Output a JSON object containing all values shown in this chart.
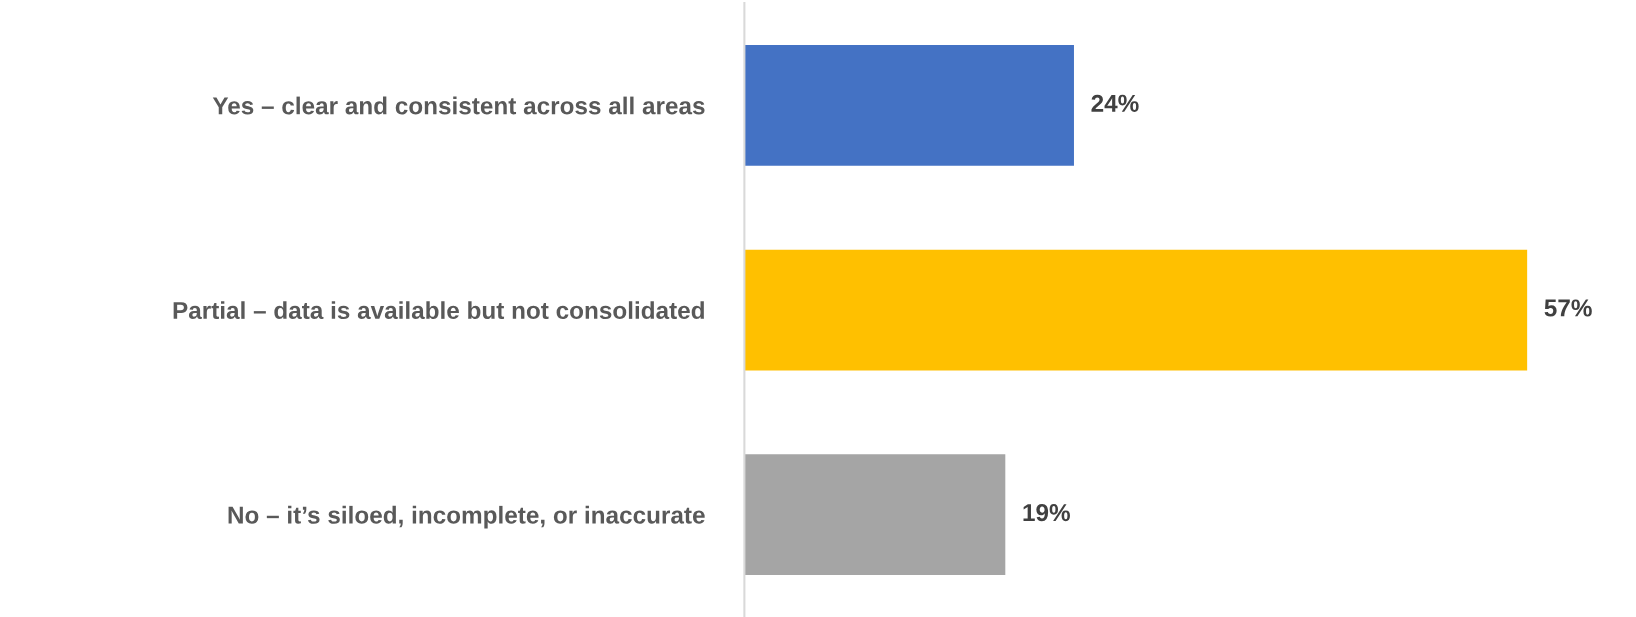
{
  "chart_data": {
    "type": "bar",
    "orientation": "horizontal",
    "categories": [
      "Yes – clear and consistent across all areas",
      "Partial – data is available but not consolidated",
      "No – it’s siloed, incomplete, or inaccurate"
    ],
    "values": [
      24,
      57,
      19
    ],
    "colors": [
      "#4472c4",
      "#ffc000",
      "#a5a5a5"
    ],
    "value_labels": [
      "24%",
      "57%",
      "19%"
    ],
    "grid": false,
    "legend": false,
    "tick_labels": "y"
  }
}
